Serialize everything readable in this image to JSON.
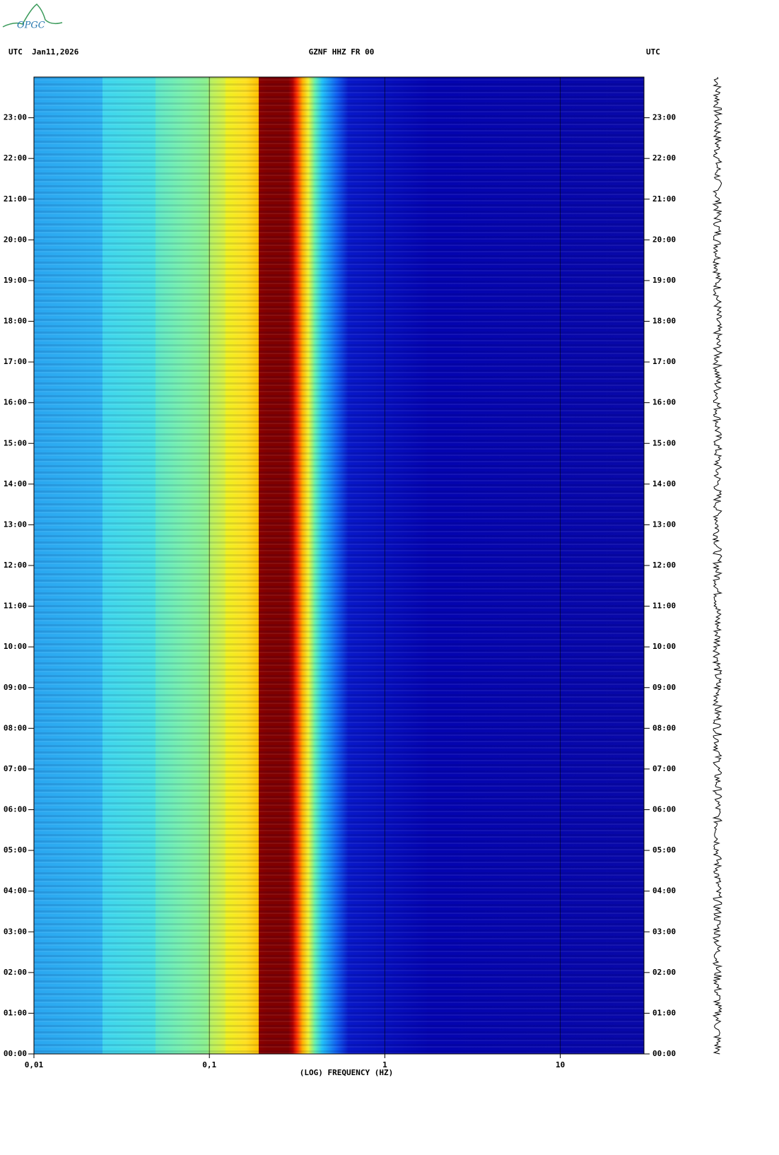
{
  "logo": "OPGC",
  "chart_data": {
    "type": "spectrogram",
    "title": "GZNF HHZ FR 00",
    "top_left": "UTC  Jan11,2026",
    "top_right": "UTC",
    "xlabel": "(LOG) FREQUENCY (HZ)",
    "xscale": "log",
    "xlim": [
      0.01,
      30
    ],
    "xticks": [
      {
        "value": 0.01,
        "label": "0,01"
      },
      {
        "value": 0.1,
        "label": "0,1"
      },
      1,
      10
    ],
    "ylim": [
      0,
      24
    ],
    "yticks": [
      {
        "value": 0,
        "label": "00:00"
      },
      {
        "value": 1,
        "label": "01:00"
      },
      {
        "value": 2,
        "label": "02:00"
      },
      {
        "value": 3,
        "label": "03:00"
      },
      {
        "value": 4,
        "label": "04:00"
      },
      {
        "value": 5,
        "label": "05:00"
      },
      {
        "value": 6,
        "label": "06:00"
      },
      {
        "value": 7,
        "label": "07:00"
      },
      {
        "value": 8,
        "label": "08:00"
      },
      {
        "value": 9,
        "label": "09:00"
      },
      {
        "value": 10,
        "label": "10:00"
      },
      {
        "value": 11,
        "label": "11:00"
      },
      {
        "value": 12,
        "label": "12:00"
      },
      {
        "value": 13,
        "label": "13:00"
      },
      {
        "value": 14,
        "label": "14:00"
      },
      {
        "value": 15,
        "label": "15:00"
      },
      {
        "value": 16,
        "label": "16:00"
      },
      {
        "value": 17,
        "label": "17:00"
      },
      {
        "value": 18,
        "label": "18:00"
      },
      {
        "value": 19,
        "label": "19:00"
      },
      {
        "value": 20,
        "label": "20:00"
      },
      {
        "value": 21,
        "label": "21:00"
      },
      {
        "value": 22,
        "label": "22:00"
      },
      {
        "value": 23,
        "label": "23:00"
      }
    ]
  }
}
